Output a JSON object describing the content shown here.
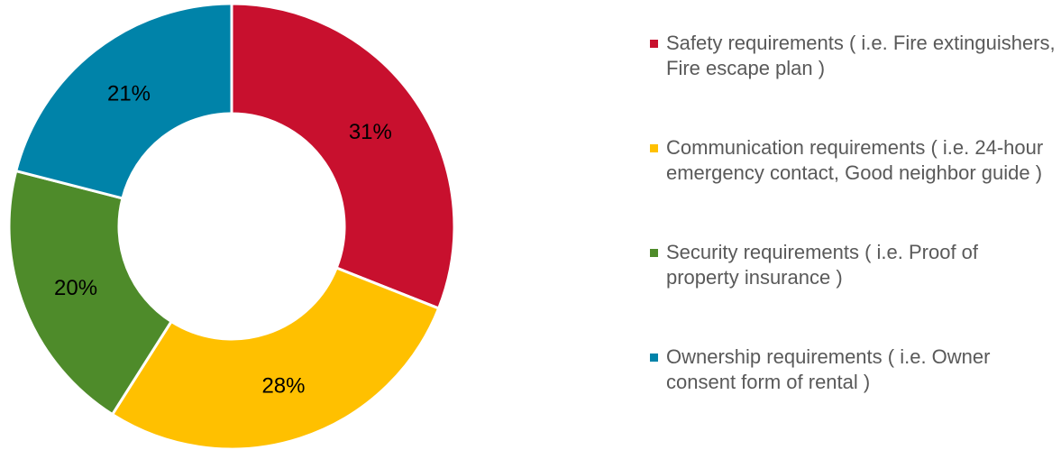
{
  "chart_data": {
    "type": "pie",
    "title": "",
    "series": [
      {
        "name": "Safety requirements ( i.e. Fire extinguishers, Fire escape plan )",
        "value": 31,
        "label": "31%",
        "color": "#C8102E"
      },
      {
        "name": "Communication requirements ( i.e. 24-hour emergency contact, Good neighbor guide )",
        "value": 28,
        "label": "28%",
        "color": "#FFC000"
      },
      {
        "name": "Security requirements ( i.e. Proof of property insurance )",
        "value": 20,
        "label": "20%",
        "color": "#4E8B2A"
      },
      {
        "name": "Ownership requirements ( i.e. Owner consent form of rental )",
        "value": 21,
        "label": "21%",
        "color": "#0083A9"
      }
    ],
    "legend_position": "right"
  }
}
